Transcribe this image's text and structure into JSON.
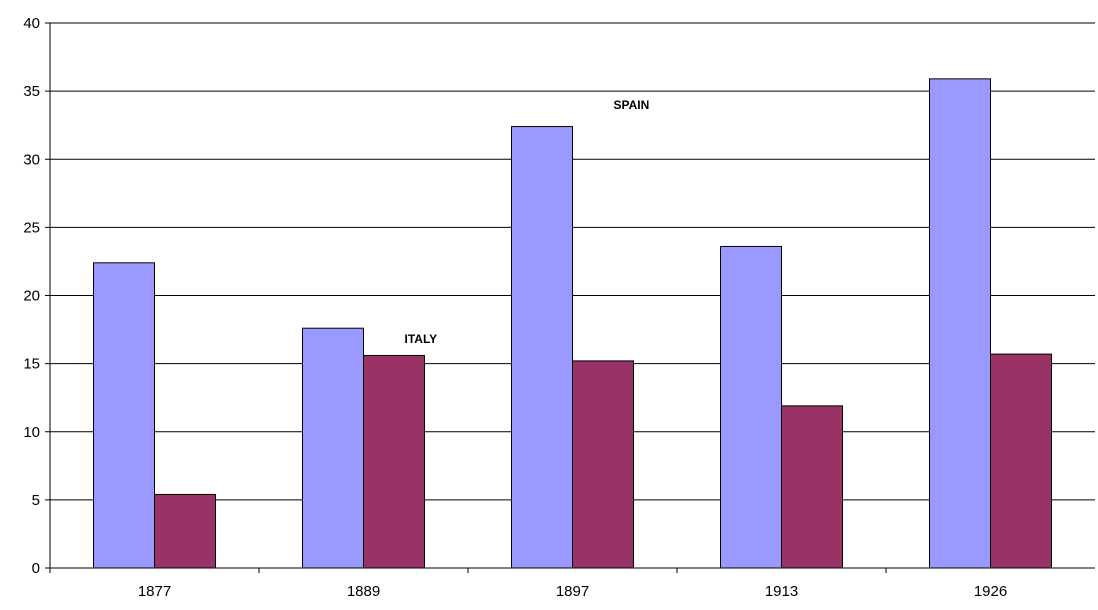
{
  "chart_data": {
    "type": "bar",
    "categories": [
      "1877",
      "1889",
      "1897",
      "1913",
      "1926"
    ],
    "series": [
      {
        "values": [
          22.4,
          17.6,
          32.4,
          23.6,
          35.9
        ],
        "color": "#9999ff"
      },
      {
        "values": [
          5.4,
          15.6,
          15.2,
          11.9,
          15.7
        ],
        "color": "#993366"
      }
    ],
    "ylim": [
      0,
      40
    ],
    "yticks": [
      0,
      5,
      10,
      15,
      20,
      25,
      30,
      35,
      40
    ],
    "grid": true,
    "annotations": [
      {
        "text": "SPAIN",
        "category": "1897",
        "y": 33.7
      },
      {
        "text": "ITALY",
        "category": "1889",
        "y": 16.5
      }
    ]
  }
}
